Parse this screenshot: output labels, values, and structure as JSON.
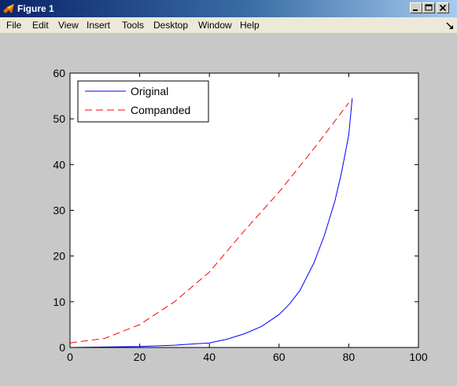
{
  "window": {
    "title": "Figure 1",
    "title_icon": "matlab-icon",
    "controls": {
      "minimize": "minimize-icon",
      "maximize": "maximize-icon",
      "close": "close-icon"
    }
  },
  "menubar": {
    "items": [
      "File",
      "Edit",
      "View",
      "Insert",
      "Tools",
      "Desktop",
      "Window",
      "Help"
    ],
    "dock_icon": "dock-arrow-icon"
  },
  "chart_data": {
    "type": "line",
    "xlim": [
      0,
      100
    ],
    "ylim": [
      0,
      60
    ],
    "xticks": [
      0,
      20,
      40,
      60,
      80,
      100
    ],
    "yticks": [
      0,
      10,
      20,
      30,
      40,
      50,
      60
    ],
    "grid": false,
    "legend_position": "top-left",
    "series": [
      {
        "name": "Original",
        "color": "#0000ff",
        "style": "solid",
        "x": [
          0,
          10,
          20,
          30,
          40,
          45,
          50,
          55,
          60,
          63,
          66,
          70,
          73,
          76,
          78,
          80,
          81
        ],
        "y": [
          0,
          0.1,
          0.2,
          0.5,
          1.0,
          1.8,
          3.0,
          4.6,
          7.2,
          9.5,
          12.5,
          18.5,
          24.5,
          32.0,
          38.5,
          46.5,
          54.5
        ]
      },
      {
        "name": "Companded",
        "color": "#ff0000",
        "style": "dashed",
        "x": [
          0,
          10,
          20,
          30,
          40,
          50,
          60,
          70,
          80
        ],
        "y": [
          1.0,
          2.0,
          5.0,
          10.0,
          16.5,
          25.5,
          34.0,
          43.5,
          53.5
        ]
      }
    ]
  }
}
